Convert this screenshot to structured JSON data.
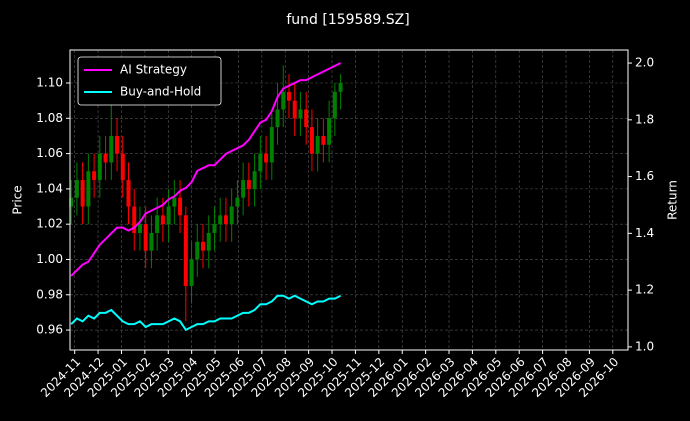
{
  "chart_data": {
    "type": "candlestick",
    "title": "fund [159589.SZ]",
    "ylabel": "Price",
    "y2label": "Return",
    "grid": true,
    "legend": "upper left",
    "up_color": "#008000",
    "down_color": "#ff0000",
    "xlim": [
      -0.2,
      23.65
    ],
    "xticks": [
      {
        "value": 0,
        "label": "2024-11"
      },
      {
        "value": 1,
        "label": "2024-12"
      },
      {
        "value": 2,
        "label": "2025-01"
      },
      {
        "value": 3,
        "label": "2025-02"
      },
      {
        "value": 4,
        "label": "2025-03"
      },
      {
        "value": 5,
        "label": "2025-04"
      },
      {
        "value": 6,
        "label": "2025-05"
      },
      {
        "value": 7,
        "label": "2025-06"
      },
      {
        "value": 8,
        "label": "2025-07"
      },
      {
        "value": 9,
        "label": "2025-08"
      },
      {
        "value": 10,
        "label": "2025-09"
      },
      {
        "value": 11,
        "label": "2025-10"
      },
      {
        "value": 12,
        "label": "2025-11"
      },
      {
        "value": 13,
        "label": "2025-12"
      },
      {
        "value": 14,
        "label": "2026-01"
      },
      {
        "value": 15,
        "label": "2026-02"
      },
      {
        "value": 16,
        "label": "2026-03"
      },
      {
        "value": 17,
        "label": "2026-04"
      },
      {
        "value": 18,
        "label": "2026-05"
      },
      {
        "value": 19,
        "label": "2026-06"
      },
      {
        "value": 20,
        "label": "2026-07"
      },
      {
        "value": 21,
        "label": "2026-08"
      },
      {
        "value": 22,
        "label": "2026-09"
      },
      {
        "value": 23,
        "label": "2026-10"
      }
    ],
    "ylim": [
      0.9487,
      1.1187
    ],
    "yticks": [
      0.96,
      0.98,
      {
        "value": 1,
        "label": "1.00"
      },
      1.02,
      1.04,
      1.06,
      1.08,
      {
        "value": 1.1,
        "label": "1.10"
      }
    ],
    "y2lim": [
      0.989,
      2.046
    ],
    "y2ticks": [
      {
        "value": 1,
        "label": "1.0"
      },
      1.2,
      1.4,
      1.6,
      1.8,
      {
        "value": 2,
        "label": "2.0"
      }
    ],
    "x": [
      -0.15,
      0.095,
      0.34,
      0.585,
      0.83,
      1.075,
      1.32,
      1.565,
      1.81,
      2.055,
      2.3,
      2.545,
      2.79,
      3.035,
      3.28,
      3.525,
      3.77,
      4.015,
      4.26,
      4.505,
      4.75,
      4.995,
      5.24,
      5.485,
      5.73,
      5.975,
      6.22,
      6.465,
      6.71,
      6.955,
      7.2,
      7.445,
      7.69,
      7.935,
      8.18,
      8.425,
      8.67,
      8.915,
      9.16,
      9.405,
      9.65,
      9.895,
      10.14,
      10.385,
      10.63,
      10.875,
      11.12,
      11.365
    ],
    "open": [
      1.03,
      1.035,
      1.045,
      1.03,
      1.05,
      1.045,
      1.06,
      1.055,
      1.07,
      1.06,
      1.045,
      1.03,
      1.015,
      1.02,
      1.005,
      1.015,
      1.025,
      1.02,
      1.03,
      1.035,
      1.025,
      0.985,
      1.0,
      1.01,
      1.005,
      1.015,
      1.02,
      1.025,
      1.02,
      1.03,
      1.035,
      1.045,
      1.04,
      1.05,
      1.06,
      1.055,
      1.075,
      1.085,
      1.095,
      1.09,
      1.08,
      1.085,
      1.075,
      1.06,
      1.07,
      1.065,
      1.08,
      1.095
    ],
    "high": [
      1.045,
      1.055,
      1.055,
      1.06,
      1.06,
      1.07,
      1.07,
      1.09,
      1.08,
      1.07,
      1.055,
      1.04,
      1.03,
      1.03,
      1.025,
      1.035,
      1.035,
      1.04,
      1.045,
      1.045,
      1.03,
      1.01,
      1.02,
      1.02,
      1.025,
      1.03,
      1.035,
      1.035,
      1.04,
      1.045,
      1.055,
      1.055,
      1.06,
      1.07,
      1.07,
      1.085,
      1.1,
      1.11,
      1.105,
      1.1,
      1.095,
      1.095,
      1.085,
      1.08,
      1.08,
      1.09,
      1.1,
      1.105
    ],
    "low": [
      1.02,
      1.025,
      1.02,
      1.02,
      1.035,
      1.035,
      1.045,
      1.045,
      1.05,
      1.035,
      1.02,
      1.005,
      1.005,
      0.995,
      0.995,
      1.005,
      1.01,
      1.01,
      1.02,
      1.015,
      0.965,
      0.975,
      0.99,
      0.995,
      0.995,
      1.005,
      1.01,
      1.01,
      1.01,
      1.02,
      1.025,
      1.03,
      1.03,
      1.04,
      1.045,
      1.045,
      1.065,
      1.075,
      1.08,
      1.07,
      1.07,
      1.065,
      1.05,
      1.05,
      1.055,
      1.055,
      1.07,
      1.085
    ],
    "close": [
      1.035,
      1.045,
      1.03,
      1.05,
      1.045,
      1.06,
      1.055,
      1.07,
      1.06,
      1.045,
      1.03,
      1.015,
      1.02,
      1.005,
      1.015,
      1.025,
      1.02,
      1.03,
      1.035,
      1.025,
      0.985,
      1.0,
      1.01,
      1.005,
      1.015,
      1.02,
      1.025,
      1.02,
      1.03,
      1.035,
      1.045,
      1.04,
      1.05,
      1.06,
      1.055,
      1.075,
      1.085,
      1.095,
      1.09,
      1.08,
      1.085,
      1.075,
      1.06,
      1.07,
      1.065,
      1.08,
      1.095,
      1.1
    ],
    "series": [
      {
        "name": "AI Strategy",
        "color": "#ff00ff",
        "axis": "y2",
        "values": [
          1.25,
          1.27,
          1.29,
          1.3,
          1.33,
          1.36,
          1.38,
          1.4,
          1.42,
          1.42,
          1.41,
          1.42,
          1.44,
          1.47,
          1.48,
          1.49,
          1.5,
          1.52,
          1.53,
          1.55,
          1.56,
          1.58,
          1.62,
          1.63,
          1.64,
          1.64,
          1.66,
          1.68,
          1.69,
          1.7,
          1.71,
          1.73,
          1.76,
          1.79,
          1.8,
          1.83,
          1.88,
          1.91,
          1.92,
          1.93,
          1.94,
          1.94,
          1.95,
          1.96,
          1.97,
          1.98,
          1.99,
          2.0
        ]
      },
      {
        "name": "Buy-and-Hold",
        "color": "#00ffff",
        "axis": "y2",
        "values": [
          1.08,
          1.1,
          1.09,
          1.11,
          1.1,
          1.12,
          1.12,
          1.13,
          1.11,
          1.09,
          1.08,
          1.08,
          1.09,
          1.07,
          1.08,
          1.08,
          1.08,
          1.09,
          1.1,
          1.09,
          1.06,
          1.07,
          1.08,
          1.08,
          1.09,
          1.09,
          1.1,
          1.1,
          1.1,
          1.11,
          1.12,
          1.12,
          1.13,
          1.15,
          1.15,
          1.16,
          1.18,
          1.18,
          1.17,
          1.18,
          1.17,
          1.16,
          1.15,
          1.16,
          1.16,
          1.17,
          1.17,
          1.18
        ]
      }
    ]
  }
}
